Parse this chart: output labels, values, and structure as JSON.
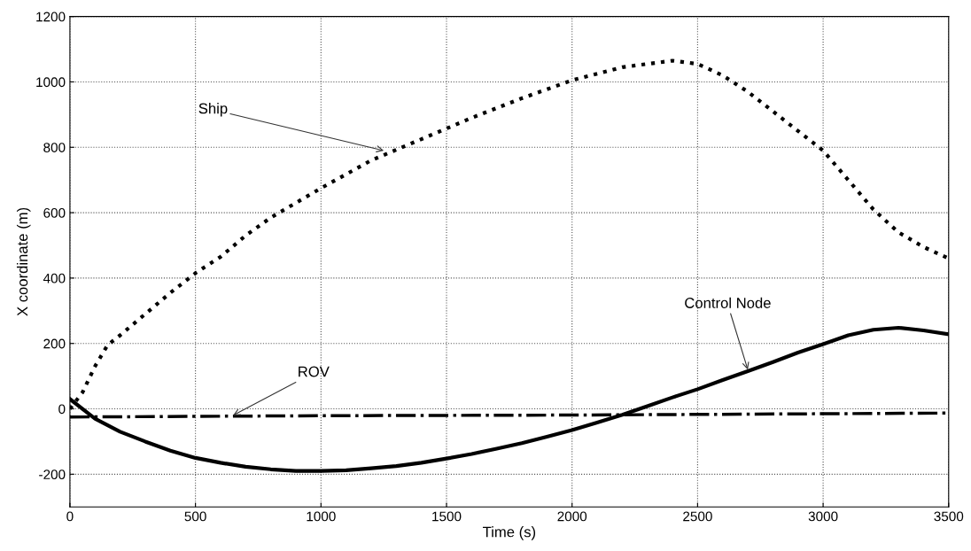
{
  "chart_data": {
    "type": "line",
    "xlabel": "Time (s)",
    "ylabel": "X coordinate (m)",
    "xlim": [
      0,
      3500
    ],
    "ylim": [
      -300,
      1200
    ],
    "xticks": [
      0,
      500,
      1000,
      1500,
      2000,
      2500,
      3000,
      3500
    ],
    "yticks": [
      -200,
      0,
      200,
      400,
      600,
      800,
      1000,
      1200
    ],
    "grid": true,
    "legend": false,
    "marker": "none",
    "series": [
      {
        "color": "#000000",
        "line_style": "dotted",
        "x": [
          0,
          50,
          100,
          150,
          200,
          300,
          400,
          500,
          600,
          700,
          800,
          900,
          1000,
          1200,
          1400,
          1600,
          1800,
          2000,
          2200,
          2400,
          2500,
          2600,
          2700,
          2800,
          2900,
          3000,
          3100,
          3200,
          3300,
          3400,
          3500
        ],
        "values": [
          0,
          50,
          130,
          195,
          225,
          290,
          355,
          415,
          465,
          530,
          585,
          630,
          675,
          760,
          825,
          890,
          950,
          1005,
          1045,
          1065,
          1055,
          1020,
          970,
          910,
          850,
          790,
          700,
          610,
          540,
          495,
          460
        ]
      },
      {
        "color": "#000000",
        "line_style": "solid",
        "x": [
          0,
          100,
          200,
          300,
          400,
          500,
          600,
          700,
          800,
          900,
          1000,
          1100,
          1200,
          1300,
          1400,
          1500,
          1600,
          1700,
          1800,
          1900,
          2000,
          2100,
          2200,
          2300,
          2400,
          2500,
          2600,
          2700,
          2800,
          2900,
          3000,
          3100,
          3200,
          3300,
          3400,
          3500
        ],
        "values": [
          30,
          -30,
          -70,
          -100,
          -128,
          -150,
          -165,
          -177,
          -185,
          -190,
          -190,
          -188,
          -182,
          -175,
          -165,
          -152,
          -138,
          -122,
          -105,
          -85,
          -65,
          -42,
          -18,
          8,
          35,
          60,
          88,
          115,
          143,
          172,
          198,
          225,
          242,
          248,
          240,
          228
        ]
      },
      {
        "color": "#000000",
        "line_style": "dashdot",
        "x": [
          0,
          500,
          1000,
          1500,
          2000,
          2500,
          3000,
          3500
        ],
        "values": [
          -25,
          -23,
          -21,
          -20,
          -19,
          -17,
          -15,
          -13
        ]
      }
    ],
    "annotations": [
      {
        "text": "Ship",
        "x": 1250,
        "y": 790
      },
      {
        "text": "ROV",
        "x": 650,
        "y": -20
      },
      {
        "text": "Control Node",
        "x": 2700,
        "y": 120
      }
    ]
  }
}
